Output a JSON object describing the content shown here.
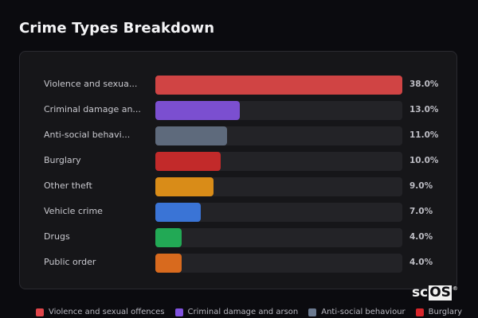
{
  "header": {
    "title": "Crime Types Breakdown"
  },
  "rows": [
    {
      "label": "Violence and sexua...",
      "full_label": "Violence and sexual offences",
      "value": 38.0,
      "pct_text": "38.0%",
      "color": "#d04444"
    },
    {
      "label": "Criminal damage an...",
      "full_label": "Criminal damage and arson",
      "value": 13.0,
      "pct_text": "13.0%",
      "color": "#7b4fd0"
    },
    {
      "label": "Anti-social behavi...",
      "full_label": "Anti-social behaviour",
      "value": 11.0,
      "pct_text": "11.0%",
      "color": "#5e6a7c"
    },
    {
      "label": "Burglary",
      "full_label": "Burglary",
      "value": 10.0,
      "pct_text": "10.0%",
      "color": "#c22a2a"
    },
    {
      "label": "Other theft",
      "full_label": "Other theft",
      "value": 9.0,
      "pct_text": "9.0%",
      "color": "#d98c18"
    },
    {
      "label": "Vehicle crime",
      "full_label": "Vehicle crime",
      "value": 7.0,
      "pct_text": "7.0%",
      "color": "#3a74d6"
    },
    {
      "label": "Drugs",
      "full_label": "Drugs",
      "value": 4.0,
      "pct_text": "4.0%",
      "color": "#22a955"
    },
    {
      "label": "Public order",
      "full_label": "Public order",
      "value": 4.0,
      "pct_text": "4.0%",
      "color": "#d86a1e"
    }
  ],
  "legend": [
    {
      "label": "Violence and sexual offences",
      "color": "#e0454a"
    },
    {
      "label": "Criminal damage and arson",
      "color": "#8153e0"
    },
    {
      "label": "Anti-social behaviour",
      "color": "#6b7a90"
    },
    {
      "label": "Burglary",
      "color": "#d9262b"
    }
  ],
  "logo": {
    "text_a": "sc",
    "text_b": "OS",
    "reg": "®"
  },
  "chart_data": {
    "type": "bar",
    "orientation": "horizontal",
    "title": "Crime Types Breakdown",
    "categories": [
      "Violence and sexual offences",
      "Criminal damage and arson",
      "Anti-social behaviour",
      "Burglary",
      "Other theft",
      "Vehicle crime",
      "Drugs",
      "Public order"
    ],
    "values": [
      38.0,
      13.0,
      11.0,
      10.0,
      9.0,
      7.0,
      4.0,
      4.0
    ],
    "value_labels": [
      "38.0%",
      "13.0%",
      "11.0%",
      "10.0%",
      "9.0%",
      "7.0%",
      "4.0%",
      "4.0%"
    ],
    "unit": "%",
    "xlabel": "",
    "ylabel": "",
    "scale_max": 38.0,
    "grid": false,
    "legend_position": "bottom",
    "legend_entries": [
      "Violence and sexual offences",
      "Criminal damage and arson",
      "Anti-social behaviour",
      "Burglary"
    ]
  }
}
